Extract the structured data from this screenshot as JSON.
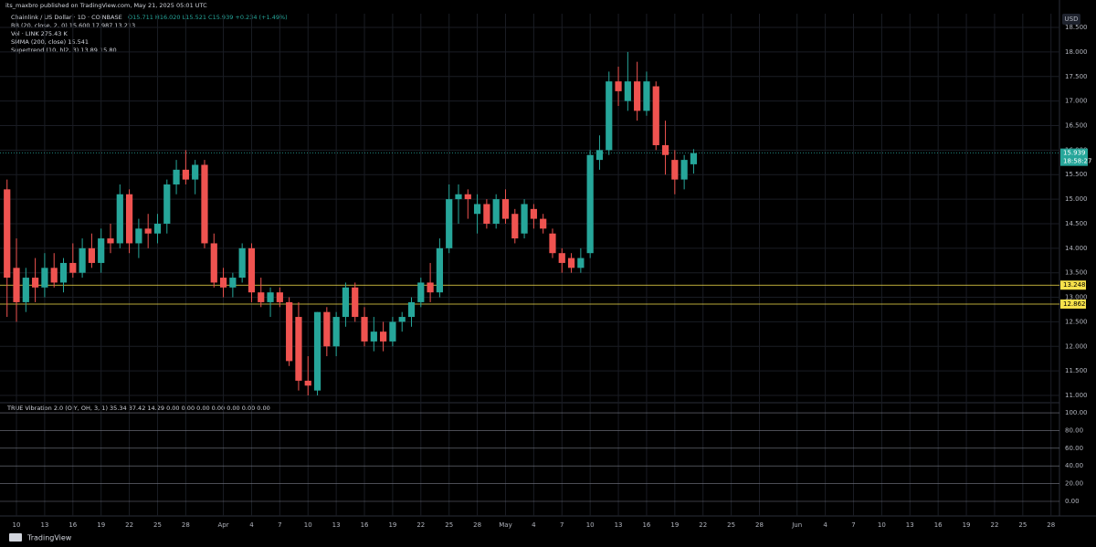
{
  "header": {
    "publisher": "its_maxbro published on TradingView.com, May 21, 2025 05:01 UTC",
    "symbol": "Chainlink / US Dollar · 1D · COINBASE",
    "ohlc": "O15.711 H16.020 L15.521 C15.939 +0.234 (+1.49%)",
    "indicators": [
      "BB (20, close, 2, 0)  15.600  17.987  13.213",
      "Vol · LINK  275.43 K",
      "SMMA (200, close)  15.541",
      "Supertrend (10, hl2, 3)  13.89  15.80"
    ],
    "oscillator": "TRUE Vibration 2.0 (OIY, OH, 3, 1)  35.34  37.42  14.29  0.00  0.00  0.00  0.00  0.00  0.00  0.00",
    "brand": "TradingView"
  },
  "chart_data": {
    "type": "candlestick",
    "up_color": "#26a69a",
    "down_color": "#ef5350",
    "currency": "USD",
    "xlim": [
      -1.75,
      110.9
    ],
    "ylim": [
      10.87,
      18.78
    ],
    "yticks": [
      {
        "value": 18.5,
        "label": "18.500"
      },
      {
        "value": 18,
        "label": "18.000"
      },
      {
        "value": 17.5,
        "label": "17.500"
      },
      {
        "value": 17,
        "label": "17.000"
      },
      {
        "value": 16.5,
        "label": "16.500"
      },
      {
        "value": 16,
        "label": "16.000"
      },
      {
        "value": 15.5,
        "label": "15.500"
      },
      {
        "value": 15,
        "label": "15.000"
      },
      {
        "value": 14.5,
        "label": "14.500"
      },
      {
        "value": 14,
        "label": "14.000"
      },
      {
        "value": 13.5,
        "label": "13.500"
      },
      {
        "value": 13,
        "label": "13.000"
      },
      {
        "value": 12.5,
        "label": "12.500"
      },
      {
        "value": 12,
        "label": "12.000"
      },
      {
        "value": 11.5,
        "label": "11.500"
      },
      {
        "value": 11,
        "label": "11.000"
      }
    ],
    "xticks": [
      {
        "value": 0,
        "label": "10"
      },
      {
        "value": 3,
        "label": "13"
      },
      {
        "value": 6,
        "label": "16"
      },
      {
        "value": 9,
        "label": "19"
      },
      {
        "value": 12,
        "label": "22"
      },
      {
        "value": 15,
        "label": "25"
      },
      {
        "value": 18,
        "label": "28"
      },
      {
        "value": 22,
        "label": "Apr"
      },
      {
        "value": 25,
        "label": "4"
      },
      {
        "value": 28,
        "label": "7"
      },
      {
        "value": 31,
        "label": "10"
      },
      {
        "value": 34,
        "label": "13"
      },
      {
        "value": 37,
        "label": "16"
      },
      {
        "value": 40,
        "label": "19"
      },
      {
        "value": 43,
        "label": "22"
      },
      {
        "value": 46,
        "label": "25"
      },
      {
        "value": 49,
        "label": "28"
      },
      {
        "value": 52,
        "label": "May"
      },
      {
        "value": 55,
        "label": "4"
      },
      {
        "value": 58,
        "label": "7"
      },
      {
        "value": 61,
        "label": "10"
      },
      {
        "value": 64,
        "label": "13"
      },
      {
        "value": 67,
        "label": "16"
      },
      {
        "value": 70,
        "label": "19"
      },
      {
        "value": 73,
        "label": "22"
      },
      {
        "value": 76,
        "label": "25"
      },
      {
        "value": 79,
        "label": "28"
      },
      {
        "value": 83,
        "label": "Jun"
      },
      {
        "value": 86,
        "label": "4"
      },
      {
        "value": 89,
        "label": "7"
      },
      {
        "value": 92,
        "label": "10"
      },
      {
        "value": 95,
        "label": "13"
      },
      {
        "value": 98,
        "label": "16"
      },
      {
        "value": 101,
        "label": "19"
      },
      {
        "value": 104,
        "label": "22"
      },
      {
        "value": 107,
        "label": "25"
      },
      {
        "value": 110,
        "label": "28"
      }
    ],
    "levels": [
      {
        "value": 13.248,
        "label": "13.248",
        "color": "#f7e14b"
      },
      {
        "value": 12.862,
        "label": "12.862",
        "color": "#f7e14b"
      }
    ],
    "last": {
      "value": 15.939,
      "label": "15.939",
      "countdown": "18:58:27",
      "color": "#26a69a"
    },
    "candles": [
      {
        "x": -1,
        "open": 15.2,
        "high": 15.4,
        "low": 12.6,
        "close": 13.4
      },
      {
        "x": 0,
        "open": 13.6,
        "high": 14.2,
        "low": 12.5,
        "close": 12.9
      },
      {
        "x": 1,
        "open": 12.9,
        "high": 13.6,
        "low": 12.7,
        "close": 13.4
      },
      {
        "x": 2,
        "open": 13.4,
        "high": 13.8,
        "low": 12.9,
        "close": 13.2
      },
      {
        "x": 3,
        "open": 13.2,
        "high": 13.9,
        "low": 13.0,
        "close": 13.6
      },
      {
        "x": 4,
        "open": 13.6,
        "high": 13.9,
        "low": 13.2,
        "close": 13.3
      },
      {
        "x": 5,
        "open": 13.3,
        "high": 13.8,
        "low": 13.1,
        "close": 13.7
      },
      {
        "x": 6,
        "open": 13.7,
        "high": 14.1,
        "low": 13.4,
        "close": 13.5
      },
      {
        "x": 7,
        "open": 13.5,
        "high": 14.2,
        "low": 13.4,
        "close": 14.0
      },
      {
        "x": 8,
        "open": 14.0,
        "high": 14.3,
        "low": 13.6,
        "close": 13.7
      },
      {
        "x": 9,
        "open": 13.7,
        "high": 14.4,
        "low": 13.5,
        "close": 14.2
      },
      {
        "x": 10,
        "open": 14.2,
        "high": 14.5,
        "low": 13.9,
        "close": 14.1
      },
      {
        "x": 11,
        "open": 14.1,
        "high": 15.3,
        "low": 14.0,
        "close": 15.1
      },
      {
        "x": 12,
        "open": 15.1,
        "high": 15.2,
        "low": 13.9,
        "close": 14.1
      },
      {
        "x": 13,
        "open": 14.1,
        "high": 14.6,
        "low": 13.8,
        "close": 14.4
      },
      {
        "x": 14,
        "open": 14.4,
        "high": 14.7,
        "low": 14.0,
        "close": 14.3
      },
      {
        "x": 15,
        "open": 14.3,
        "high": 14.7,
        "low": 14.1,
        "close": 14.5
      },
      {
        "x": 16,
        "open": 14.5,
        "high": 15.4,
        "low": 14.3,
        "close": 15.3
      },
      {
        "x": 17,
        "open": 15.3,
        "high": 15.8,
        "low": 15.1,
        "close": 15.6
      },
      {
        "x": 18,
        "open": 15.6,
        "high": 16.0,
        "low": 15.3,
        "close": 15.4
      },
      {
        "x": 19,
        "open": 15.4,
        "high": 15.8,
        "low": 15.1,
        "close": 15.7
      },
      {
        "x": 20,
        "open": 15.7,
        "high": 15.8,
        "low": 14.0,
        "close": 14.1
      },
      {
        "x": 21,
        "open": 14.1,
        "high": 14.3,
        "low": 13.2,
        "close": 13.3
      },
      {
        "x": 22,
        "open": 13.4,
        "high": 13.6,
        "low": 13.0,
        "close": 13.2
      },
      {
        "x": 23,
        "open": 13.2,
        "high": 13.5,
        "low": 13.0,
        "close": 13.4
      },
      {
        "x": 24,
        "open": 13.4,
        "high": 14.1,
        "low": 13.3,
        "close": 14.0
      },
      {
        "x": 25,
        "open": 14.0,
        "high": 14.1,
        "low": 12.9,
        "close": 13.1
      },
      {
        "x": 26,
        "open": 13.1,
        "high": 13.4,
        "low": 12.8,
        "close": 12.9
      },
      {
        "x": 27,
        "open": 12.9,
        "high": 13.2,
        "low": 12.6,
        "close": 13.1
      },
      {
        "x": 28,
        "open": 13.1,
        "high": 13.2,
        "low": 12.8,
        "close": 12.9
      },
      {
        "x": 29,
        "open": 12.9,
        "high": 13.0,
        "low": 11.6,
        "close": 11.7
      },
      {
        "x": 30,
        "open": 12.6,
        "high": 12.9,
        "low": 11.1,
        "close": 11.3
      },
      {
        "x": 31,
        "open": 11.3,
        "high": 11.8,
        "low": 11.0,
        "close": 11.2
      },
      {
        "x": 32,
        "open": 11.1,
        "high": 12.7,
        "low": 11.0,
        "close": 12.7
      },
      {
        "x": 33,
        "open": 12.7,
        "high": 12.8,
        "low": 11.8,
        "close": 12.0
      },
      {
        "x": 34,
        "open": 12.0,
        "high": 12.7,
        "low": 11.8,
        "close": 12.6
      },
      {
        "x": 35,
        "open": 12.6,
        "high": 13.3,
        "low": 12.4,
        "close": 13.2
      },
      {
        "x": 36,
        "open": 13.2,
        "high": 13.3,
        "low": 12.5,
        "close": 12.6
      },
      {
        "x": 37,
        "open": 12.6,
        "high": 12.8,
        "low": 12.0,
        "close": 12.1
      },
      {
        "x": 38,
        "open": 12.1,
        "high": 12.6,
        "low": 11.9,
        "close": 12.3
      },
      {
        "x": 39,
        "open": 12.3,
        "high": 12.5,
        "low": 11.9,
        "close": 12.1
      },
      {
        "x": 40,
        "open": 12.1,
        "high": 12.6,
        "low": 12.0,
        "close": 12.5
      },
      {
        "x": 41,
        "open": 12.5,
        "high": 12.7,
        "low": 12.3,
        "close": 12.6
      },
      {
        "x": 42,
        "open": 12.6,
        "high": 13.0,
        "low": 12.4,
        "close": 12.9
      },
      {
        "x": 43,
        "open": 12.9,
        "high": 13.4,
        "low": 12.8,
        "close": 13.3
      },
      {
        "x": 44,
        "open": 13.3,
        "high": 13.7,
        "low": 12.9,
        "close": 13.1
      },
      {
        "x": 45,
        "open": 13.1,
        "high": 14.2,
        "low": 13.0,
        "close": 14.0
      },
      {
        "x": 46,
        "open": 14.0,
        "high": 15.3,
        "low": 13.9,
        "close": 15.0
      },
      {
        "x": 47,
        "open": 15.0,
        "high": 15.3,
        "low": 14.5,
        "close": 15.1
      },
      {
        "x": 48,
        "open": 15.1,
        "high": 15.2,
        "low": 14.6,
        "close": 15.0
      },
      {
        "x": 49,
        "open": 14.7,
        "high": 15.1,
        "low": 14.3,
        "close": 14.9
      },
      {
        "x": 50,
        "open": 14.9,
        "high": 15.0,
        "low": 14.4,
        "close": 14.5
      },
      {
        "x": 51,
        "open": 14.5,
        "high": 15.1,
        "low": 14.4,
        "close": 15.0
      },
      {
        "x": 52,
        "open": 15.0,
        "high": 15.2,
        "low": 14.5,
        "close": 14.6
      },
      {
        "x": 53,
        "open": 14.7,
        "high": 14.8,
        "low": 14.1,
        "close": 14.2
      },
      {
        "x": 54,
        "open": 14.3,
        "high": 15.0,
        "low": 14.2,
        "close": 14.9
      },
      {
        "x": 55,
        "open": 14.8,
        "high": 14.9,
        "low": 14.4,
        "close": 14.6
      },
      {
        "x": 56,
        "open": 14.6,
        "high": 14.7,
        "low": 14.3,
        "close": 14.4
      },
      {
        "x": 57,
        "open": 14.3,
        "high": 14.4,
        "low": 13.8,
        "close": 13.9
      },
      {
        "x": 58,
        "open": 13.9,
        "high": 14.0,
        "low": 13.5,
        "close": 13.7
      },
      {
        "x": 59,
        "open": 13.8,
        "high": 13.9,
        "low": 13.5,
        "close": 13.6
      },
      {
        "x": 60,
        "open": 13.6,
        "high": 14.0,
        "low": 13.5,
        "close": 13.8
      },
      {
        "x": 61,
        "open": 13.9,
        "high": 16.0,
        "low": 13.8,
        "close": 15.9
      },
      {
        "x": 62,
        "open": 15.8,
        "high": 16.3,
        "low": 15.6,
        "close": 16.0
      },
      {
        "x": 63,
        "open": 16.0,
        "high": 17.6,
        "low": 15.9,
        "close": 17.4
      },
      {
        "x": 64,
        "open": 17.4,
        "high": 17.7,
        "low": 16.9,
        "close": 17.2
      },
      {
        "x": 65,
        "open": 17.0,
        "high": 18.0,
        "low": 16.8,
        "close": 17.4
      },
      {
        "x": 66,
        "open": 17.4,
        "high": 17.8,
        "low": 16.6,
        "close": 16.8
      },
      {
        "x": 67,
        "open": 16.8,
        "high": 17.6,
        "low": 16.7,
        "close": 17.4
      },
      {
        "x": 68,
        "open": 17.3,
        "high": 17.4,
        "low": 16.0,
        "close": 16.1
      },
      {
        "x": 69,
        "open": 16.1,
        "high": 16.6,
        "low": 15.5,
        "close": 15.9
      },
      {
        "x": 70,
        "open": 15.8,
        "high": 16.0,
        "low": 15.1,
        "close": 15.4
      },
      {
        "x": 71,
        "open": 15.4,
        "high": 15.9,
        "low": 15.2,
        "close": 15.8
      },
      {
        "x": 72,
        "open": 15.711,
        "high": 16.02,
        "low": 15.521,
        "close": 15.939
      }
    ],
    "lower_pane": {
      "ylim": [
        -16.5,
        109.3
      ],
      "yticks": [
        {
          "value": 100,
          "label": "100.00"
        },
        {
          "value": 80,
          "label": "80.00"
        },
        {
          "value": 60,
          "label": "60.00"
        },
        {
          "value": 40,
          "label": "40.00"
        },
        {
          "value": 20,
          "label": "20.00"
        },
        {
          "value": 0,
          "label": "0.00"
        }
      ]
    }
  }
}
